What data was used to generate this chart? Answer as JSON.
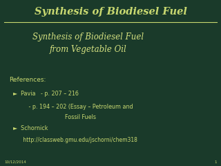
{
  "bg_color": "#1a3a2a",
  "title_text": "Synthesis of Biodiesel Fuel",
  "title_color": "#c8d870",
  "title_line_color": "#c8d870",
  "subtitle_text": "Synthesis of Biodiesel Fuel\nfrom Vegetable Oil",
  "subtitle_color": "#d4e080",
  "references_label": "References:",
  "ref_color": "#c8d870",
  "bullet1_line1": "►  Pavia   - p. 207 – 216",
  "bullet2_line1": "►  Schornick",
  "bullet2_line2": "      http://classweb.gmu.edu/jschorni/chem318",
  "date_text": "10/12/2014",
  "page_num": "1",
  "footer_color": "#c8d870"
}
